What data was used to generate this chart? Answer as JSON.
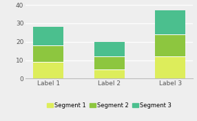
{
  "categories": [
    "Label 1",
    "Label 2",
    "Label 3"
  ],
  "segment1": [
    9.0,
    5.0,
    12.0
  ],
  "segment2": [
    9.0,
    7.0,
    12.0
  ],
  "segment3": [
    10.0,
    8.0,
    13.0
  ],
  "colors": [
    "#dded5b",
    "#8dc63f",
    "#4bbf8e"
  ],
  "legend_labels": [
    "Segment 1",
    "Segment 2",
    "Segment 3"
  ],
  "ylim": [
    0,
    40
  ],
  "yticks": [
    0,
    10,
    20,
    30,
    40
  ],
  "bar_width": 0.5,
  "background_color": "#eeeeee",
  "grid_color": "#ffffff",
  "tick_fontsize": 6.5,
  "legend_fontsize": 6.0,
  "figwidth": 2.86,
  "figheight": 1.76,
  "dpi": 100
}
